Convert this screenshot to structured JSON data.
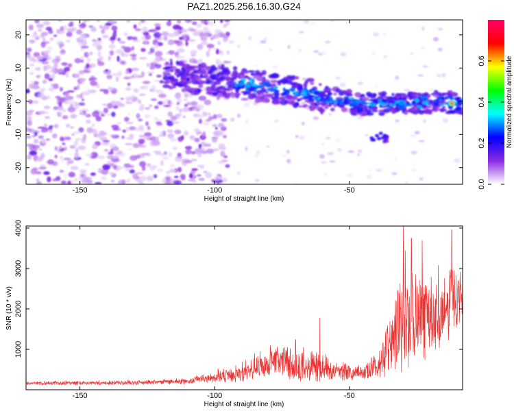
{
  "title": "PAZ1.2025.256.16.30.G24",
  "chart_data": [
    {
      "type": "heatmap",
      "xlabel": "Height of straight line (km)",
      "ylabel": "Frequency (Hz)",
      "xlim": [
        -170,
        -8
      ],
      "ylim": [
        -25,
        24.5
      ],
      "xticks": [
        -150,
        -100,
        -50
      ],
      "yticks": [
        -20,
        -10,
        0,
        10,
        20
      ],
      "colorbar": {
        "label": "Normalized spectral amplitude",
        "range": [
          0,
          0.8
        ],
        "ticks": [
          0.0,
          0.2,
          0.4,
          0.6
        ],
        "colormap": [
          "#ffffff",
          "#8a2be2",
          "#0000ff",
          "#00ffff",
          "#00ff00",
          "#ffff00",
          "#ff0000",
          "#ff0066"
        ]
      },
      "ridge": [
        {
          "x": -115,
          "y": 7.5
        },
        {
          "x": -100,
          "y": 6.5
        },
        {
          "x": -85,
          "y": 4.5
        },
        {
          "x": -75,
          "y": 3.5
        },
        {
          "x": -65,
          "y": 2.0
        },
        {
          "x": -55,
          "y": 0.5
        },
        {
          "x": -45,
          "y": -1.0
        },
        {
          "x": -35,
          "y": -0.8
        },
        {
          "x": -25,
          "y": -0.5
        },
        {
          "x": -15,
          "y": 0.0
        },
        {
          "x": -10,
          "y": -0.7
        }
      ],
      "peak": {
        "x": -12,
        "y": -0.7,
        "value": 0.75
      }
    },
    {
      "type": "line",
      "xlabel": "Height of straight line (km)",
      "ylabel": "SNR (10 * v/v)",
      "xlim": [
        -170,
        -8
      ],
      "ylim": [
        0,
        4050
      ],
      "xticks": [
        -150,
        -100,
        -50
      ],
      "yticks": [
        1000,
        2000,
        3000,
        4000
      ],
      "color": "#ee3333",
      "envelope": [
        {
          "x": -170,
          "base": 150,
          "amp": 80
        },
        {
          "x": -130,
          "base": 160,
          "amp": 90
        },
        {
          "x": -110,
          "base": 190,
          "amp": 110
        },
        {
          "x": -100,
          "base": 280,
          "amp": 220
        },
        {
          "x": -90,
          "base": 350,
          "amp": 350
        },
        {
          "x": -80,
          "base": 600,
          "amp": 600
        },
        {
          "x": -70,
          "base": 550,
          "amp": 700
        },
        {
          "x": -62,
          "base": 500,
          "amp": 650
        },
        {
          "x": -55,
          "base": 380,
          "amp": 350
        },
        {
          "x": -45,
          "base": 380,
          "amp": 300
        },
        {
          "x": -38,
          "base": 600,
          "amp": 600
        },
        {
          "x": -34,
          "base": 1100,
          "amp": 1600
        },
        {
          "x": -30,
          "base": 1500,
          "amp": 2300
        },
        {
          "x": -25,
          "base": 1600,
          "amp": 2000
        },
        {
          "x": -20,
          "base": 1500,
          "amp": 1500
        },
        {
          "x": -15,
          "base": 1800,
          "amp": 1500
        },
        {
          "x": -11,
          "base": 2200,
          "amp": 1800
        },
        {
          "x": -8,
          "base": 2000,
          "amp": 800
        }
      ],
      "peaks": [
        {
          "x": -70,
          "y": 1250
        },
        {
          "x": -61,
          "y": 1780
        },
        {
          "x": -30,
          "y": 4050
        },
        {
          "x": -27,
          "y": 3750
        },
        {
          "x": -23,
          "y": 3700
        },
        {
          "x": -12,
          "y": 3950
        }
      ]
    }
  ]
}
